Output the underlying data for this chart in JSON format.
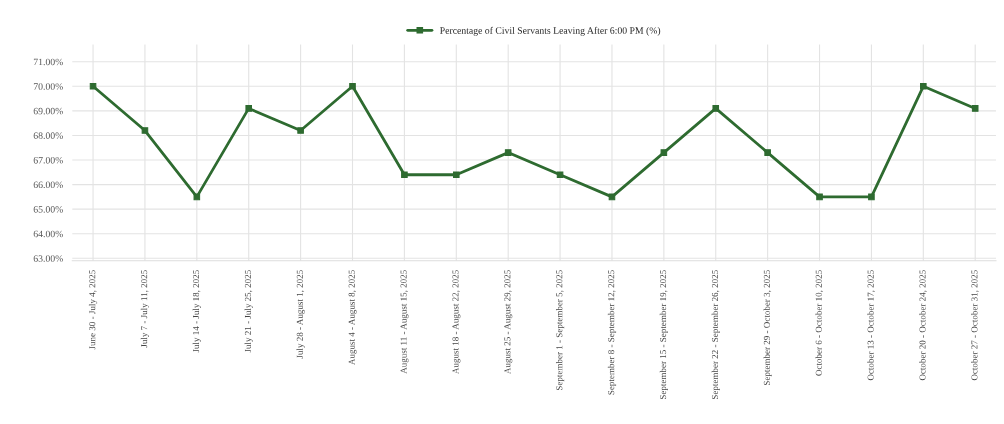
{
  "chart_data": {
    "type": "line",
    "categories": [
      "June 30 - July 4, 2025",
      "July 7 - July 11, 2025",
      "July 14 - July 18, 2025",
      "July 21 - July 25, 2025",
      "July 28 - August 1, 2025",
      "August 4 - August 8, 2025",
      "August 11 - August 15, 2025",
      "August 18 - August 22, 2025",
      "August 25 - August 29, 2025",
      "September 1 - September 5, 2025",
      "September 8 - September 12, 2025",
      "September 15 - September 19, 2025",
      "September 22 - September 26, 2025",
      "September 29 - October 3, 2025",
      "October 6 - October 10, 2025",
      "October 13 - October 17, 2025",
      "October 20 - October 24, 2025",
      "October 27 - October 31, 2025"
    ],
    "series": [
      {
        "name": "Percentage of Civil Servants Leaving After 6:00 PM (%)",
        "color": "#2e6b30",
        "values": [
          70.0,
          68.2,
          65.5,
          69.1,
          68.2,
          70.0,
          66.4,
          66.4,
          67.3,
          66.4,
          65.5,
          67.3,
          69.1,
          67.3,
          65.5,
          65.5,
          70.0,
          69.1
        ]
      }
    ],
    "ylim": [
      62.9,
      71.7
    ],
    "yticks": [
      {
        "value": 63,
        "label": "63.00%"
      },
      {
        "value": 64,
        "label": "64.00%"
      },
      {
        "value": 65,
        "label": "65.00%"
      },
      {
        "value": 66,
        "label": "66.00%"
      },
      {
        "value": 67,
        "label": "67.00%"
      },
      {
        "value": 68,
        "label": "68.00%"
      },
      {
        "value": 69,
        "label": "69.00%"
      },
      {
        "value": 70,
        "label": "70.00%"
      },
      {
        "value": 71,
        "label": "71.00%"
      }
    ],
    "grid": true,
    "legend": "top",
    "marker": "square",
    "line_style": "solid"
  }
}
